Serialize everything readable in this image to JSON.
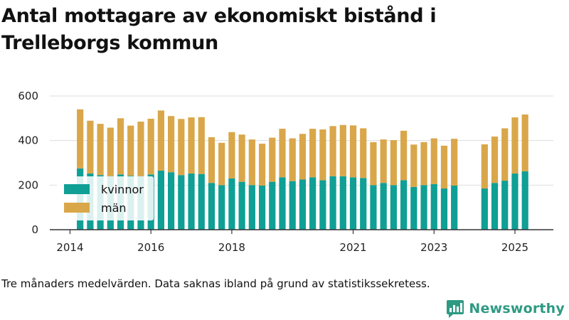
{
  "title": "Antal mottagare av ekonomiskt bistånd i Trelleborgs kommun",
  "footnote": "Tre månaders medelvärden. Data saknas ibland på grund av statistikssekretess.",
  "brand": "Newsworthy",
  "colors": {
    "kvinnor": "#0f9f95",
    "man": "#d9a74a",
    "axis": "#333333",
    "grid": "#dddddd",
    "brand": "#2e9a83"
  },
  "chart_data": {
    "type": "bar",
    "stacked": true,
    "title": "Antal mottagare av ekonomiskt bistånd i Trelleborgs kommun",
    "xlabel": "",
    "ylabel": "",
    "ylim": [
      0,
      600
    ],
    "yticks": [
      0,
      200,
      400,
      600
    ],
    "xticks": [
      "2014",
      "2016",
      "2018",
      "2021",
      "2023",
      "2025"
    ],
    "grid": true,
    "legend_position": "lower-left",
    "x": [
      "2014-04",
      "2014-07",
      "2014-10",
      "2015-01",
      "2015-04",
      "2015-07",
      "2015-10",
      "2016-01",
      "2016-04",
      "2016-07",
      "2016-10",
      "2017-01",
      "2017-04",
      "2017-07",
      "2017-10",
      "2018-01",
      "2018-04",
      "2018-07",
      "2018-10",
      "2019-01",
      "2019-04",
      "2019-07",
      "2019-10",
      "2020-01",
      "2020-04",
      "2020-07",
      "2020-10",
      "2021-01",
      "2021-04",
      "2021-07",
      "2021-10",
      "2022-01",
      "2022-04",
      "2022-07",
      "2022-10",
      "2023-01",
      "2023-04",
      "2023-07",
      "2023-10",
      "2024-01",
      "2024-04",
      "2024-07",
      "2024-10",
      "2025-01",
      "2025-04"
    ],
    "series": [
      {
        "name": "kvinnor",
        "color": "#0f9f95",
        "values": [
          275,
          252,
          245,
          240,
          248,
          242,
          240,
          248,
          265,
          258,
          245,
          252,
          250,
          210,
          200,
          230,
          215,
          200,
          198,
          215,
          235,
          218,
          225,
          235,
          222,
          240,
          240,
          235,
          232,
          200,
          210,
          200,
          222,
          192,
          200,
          205,
          185,
          198,
          null,
          null,
          185,
          210,
          220,
          252,
          262
        ]
      },
      {
        "name": "män",
        "color": "#d9a74a",
        "values": [
          265,
          237,
          230,
          218,
          252,
          225,
          245,
          250,
          270,
          252,
          252,
          252,
          255,
          205,
          190,
          208,
          212,
          205,
          188,
          198,
          218,
          192,
          205,
          218,
          228,
          225,
          230,
          233,
          223,
          193,
          195,
          202,
          222,
          190,
          193,
          205,
          192,
          210,
          null,
          null,
          198,
          208,
          235,
          252,
          255
        ]
      }
    ]
  }
}
